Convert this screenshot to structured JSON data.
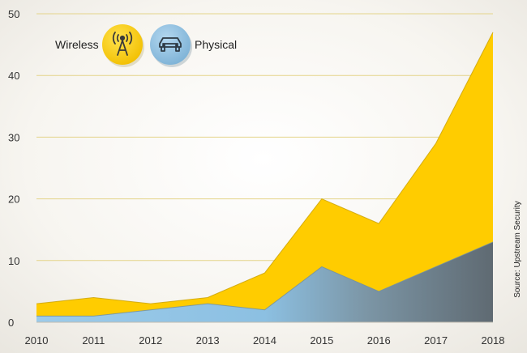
{
  "chart_data": {
    "type": "area",
    "x": [
      "2010",
      "2011",
      "2012",
      "2013",
      "2014",
      "2015",
      "2016",
      "2017",
      "2018"
    ],
    "series": [
      {
        "name": "Wireless",
        "values": [
          3,
          4,
          3,
          4,
          8,
          20,
          16,
          29,
          47
        ],
        "color": "#FFCC00"
      },
      {
        "name": "Physical",
        "values": [
          1,
          1,
          2,
          3,
          2,
          9,
          5,
          9,
          13
        ],
        "color": "#8EC1E3"
      }
    ],
    "ylim": [
      0,
      50
    ],
    "yticks": [
      "0",
      "10",
      "20",
      "30",
      "40",
      "50"
    ],
    "grid": true,
    "legend": "top-left",
    "legend_icons": {
      "Wireless": "radio-tower-icon",
      "Physical": "car-icon"
    },
    "source": "Source: Upstream Security"
  }
}
